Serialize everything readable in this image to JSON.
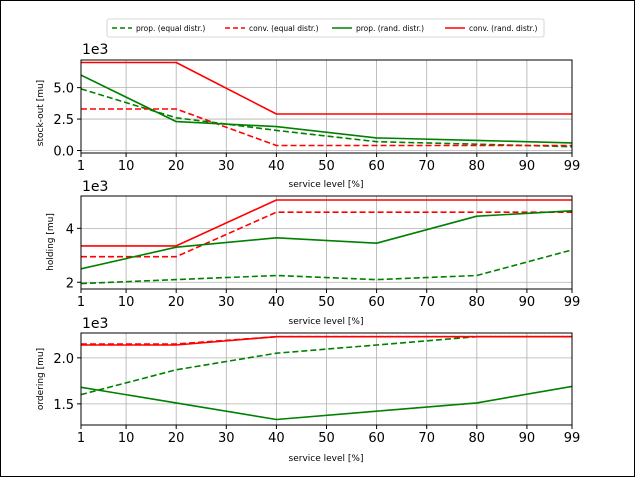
{
  "chart_data": [
    {
      "type": "line",
      "id": "stockout",
      "ylabel": "stock-out [mu]",
      "xlabel": "service level [%]",
      "exponent_label": "1e3",
      "x_ticks": [
        1,
        10,
        20,
        30,
        40,
        50,
        60,
        70,
        80,
        90,
        99
      ],
      "y_ticks": [
        0.0,
        2.5,
        5.0
      ],
      "y_tick_labels": [
        "0.0",
        "2.5",
        "5.0"
      ],
      "ylim": [
        -0.2,
        7.2
      ],
      "grid": true,
      "series": [
        {
          "name": "prop. (equal distr.)",
          "color": "#008000",
          "dash": true,
          "x": [
            1,
            20,
            40,
            60,
            80,
            99
          ],
          "y": [
            4.9,
            2.6,
            1.6,
            0.7,
            0.5,
            0.3
          ]
        },
        {
          "name": "conv. (equal distr.)",
          "color": "#ff0000",
          "dash": true,
          "x": [
            1,
            20,
            40,
            60,
            80,
            99
          ],
          "y": [
            3.3,
            3.3,
            0.4,
            0.4,
            0.4,
            0.4
          ]
        },
        {
          "name": "prop. (rand. distr.)",
          "color": "#008000",
          "dash": false,
          "x": [
            1,
            20,
            40,
            60,
            80,
            99
          ],
          "y": [
            6.0,
            2.3,
            1.9,
            1.0,
            0.8,
            0.6
          ]
        },
        {
          "name": "conv. (rand. distr.)",
          "color": "#ff0000",
          "dash": false,
          "x": [
            1,
            20,
            40,
            60,
            80,
            99
          ],
          "y": [
            7.0,
            7.0,
            2.9,
            2.9,
            2.9,
            2.9
          ]
        }
      ]
    },
    {
      "type": "line",
      "id": "holding",
      "ylabel": "holding [mu]",
      "xlabel": "service level [%]",
      "exponent_label": "1e3",
      "x_ticks": [
        1,
        10,
        20,
        30,
        40,
        50,
        60,
        70,
        80,
        90,
        99
      ],
      "y_ticks": [
        2,
        4
      ],
      "y_tick_labels": [
        "2",
        "4"
      ],
      "ylim": [
        1.75,
        5.2
      ],
      "grid": true,
      "series": [
        {
          "name": "prop. (equal distr.)",
          "color": "#008000",
          "dash": true,
          "x": [
            1,
            20,
            40,
            60,
            80,
            99
          ],
          "y": [
            1.95,
            2.1,
            2.25,
            2.1,
            2.25,
            3.2
          ]
        },
        {
          "name": "conv. (equal distr.)",
          "color": "#ff0000",
          "dash": true,
          "x": [
            1,
            20,
            40,
            60,
            80,
            99
          ],
          "y": [
            2.95,
            2.95,
            4.6,
            4.6,
            4.6,
            4.6
          ]
        },
        {
          "name": "prop. (rand. distr.)",
          "color": "#008000",
          "dash": false,
          "x": [
            1,
            20,
            40,
            60,
            80,
            99
          ],
          "y": [
            2.5,
            3.3,
            3.65,
            3.45,
            4.45,
            4.65
          ]
        },
        {
          "name": "conv. (rand. distr.)",
          "color": "#ff0000",
          "dash": false,
          "x": [
            1,
            20,
            40,
            60,
            80,
            99
          ],
          "y": [
            3.35,
            3.35,
            5.05,
            5.05,
            5.05,
            5.05
          ]
        }
      ]
    },
    {
      "type": "line",
      "id": "ordering",
      "ylabel": "ordering [mu]",
      "xlabel": "service level [%]",
      "exponent_label": "1e3",
      "x_ticks": [
        1,
        10,
        20,
        30,
        40,
        50,
        60,
        70,
        80,
        90,
        99
      ],
      "y_ticks": [
        1.5,
        2.0
      ],
      "y_tick_labels": [
        "1.5",
        "2.0"
      ],
      "ylim": [
        1.27,
        2.27
      ],
      "grid": true,
      "series": [
        {
          "name": "prop. (equal distr.)",
          "color": "#008000",
          "dash": true,
          "x": [
            1,
            20,
            40,
            60,
            80,
            99
          ],
          "y": [
            1.6,
            1.87,
            2.05,
            2.14,
            2.23,
            2.23
          ]
        },
        {
          "name": "conv. (equal distr.)",
          "color": "#ff0000",
          "dash": true,
          "x": [
            1,
            20,
            40,
            60,
            80,
            99
          ],
          "y": [
            2.15,
            2.15,
            2.23,
            2.23,
            2.23,
            2.23
          ]
        },
        {
          "name": "prop. (rand. distr.)",
          "color": "#008000",
          "dash": false,
          "x": [
            1,
            20,
            40,
            60,
            80,
            99
          ],
          "y": [
            1.68,
            1.51,
            1.33,
            1.42,
            1.51,
            1.69
          ]
        },
        {
          "name": "conv. (rand. distr.)",
          "color": "#ff0000",
          "dash": false,
          "x": [
            1,
            20,
            40,
            60,
            80,
            99
          ],
          "y": [
            2.14,
            2.14,
            2.23,
            2.23,
            2.23,
            2.23
          ]
        }
      ]
    }
  ],
  "legend": {
    "placement": "top-center",
    "entries": [
      {
        "label": "prop. (equal distr.)",
        "color": "#008000",
        "dash": true
      },
      {
        "label": "conv. (equal distr.)",
        "color": "#ff0000",
        "dash": true
      },
      {
        "label": "prop. (rand. distr.)",
        "color": "#008000",
        "dash": false
      },
      {
        "label": "conv. (rand. distr.)",
        "color": "#ff0000",
        "dash": false
      }
    ]
  }
}
